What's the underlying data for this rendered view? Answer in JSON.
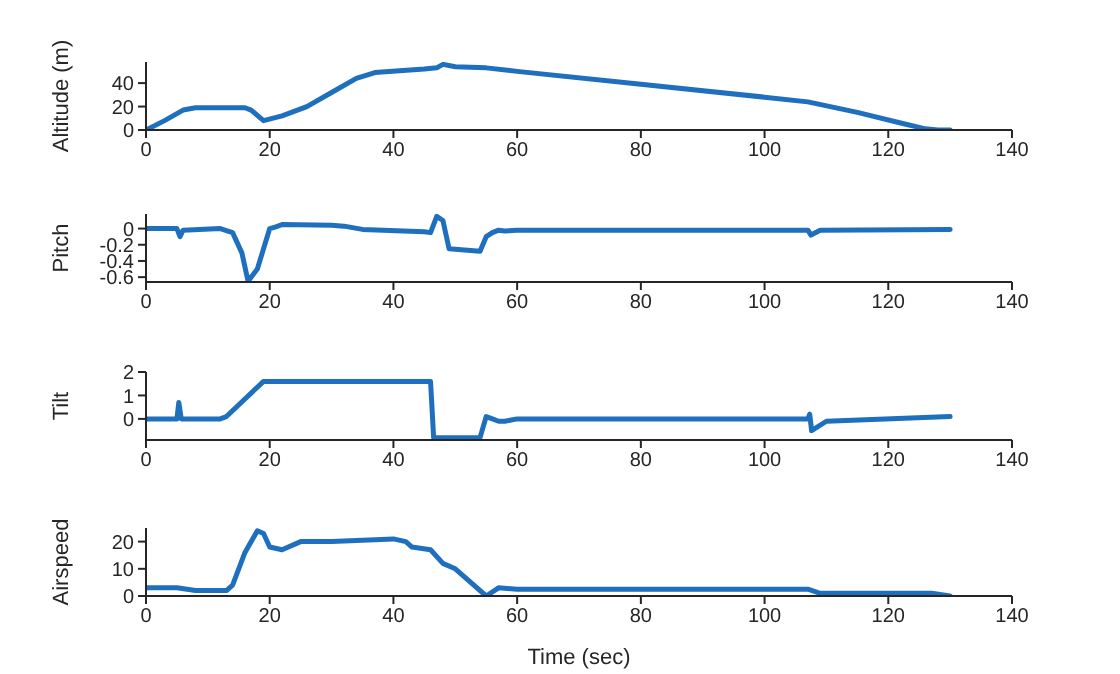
{
  "chart_data": [
    {
      "type": "line",
      "ylabel": "Altitude (m)",
      "x": [
        0,
        3,
        6,
        8,
        16,
        17,
        19,
        22,
        26,
        30,
        34,
        37,
        45,
        47,
        48,
        50,
        55,
        60,
        80,
        100,
        107,
        115,
        122,
        126,
        128,
        130
      ],
      "series": [
        {
          "color": "#1f6fbf",
          "values": [
            0,
            8,
            17,
            19,
            19,
            17,
            8,
            12,
            20,
            32,
            44,
            49,
            52,
            53,
            56,
            54,
            53,
            50,
            39,
            28,
            24,
            15,
            6,
            1,
            0,
            0
          ]
        }
      ],
      "xlim": [
        0,
        140
      ],
      "xticks": [
        0,
        20,
        40,
        60,
        80,
        100,
        120,
        140
      ],
      "ylim": [
        0,
        58
      ],
      "yticks": [
        0,
        20,
        40
      ],
      "grid": false
    },
    {
      "type": "line",
      "ylabel": "Pitch",
      "x": [
        0,
        5,
        5.5,
        6,
        12,
        14,
        15.5,
        16.5,
        18,
        19,
        20,
        21,
        22,
        30,
        32,
        35,
        45,
        46,
        47,
        48,
        49,
        54,
        55,
        56,
        57,
        58,
        60,
        107,
        107.5,
        109,
        130
      ],
      "series": [
        {
          "color": "#1f6fbf",
          "values": [
            0,
            0,
            -0.1,
            -0.02,
            0,
            -0.05,
            -0.3,
            -0.65,
            -0.5,
            -0.25,
            0,
            0.02,
            0.05,
            0.04,
            0.03,
            -0.01,
            -0.04,
            -0.05,
            0.15,
            0.1,
            -0.25,
            -0.28,
            -0.1,
            -0.05,
            -0.02,
            -0.03,
            -0.02,
            -0.02,
            -0.08,
            -0.02,
            -0.01
          ]
        }
      ],
      "xlim": [
        0,
        140
      ],
      "xticks": [
        0,
        20,
        40,
        60,
        80,
        100,
        120,
        140
      ],
      "ylim": [
        -0.66,
        0.18
      ],
      "yticks": [
        -0.6,
        -0.4,
        -0.2,
        0
      ],
      "grid": false
    },
    {
      "type": "line",
      "ylabel": "Tilt",
      "x": [
        0,
        5,
        5.3,
        5.7,
        12,
        13,
        19,
        46,
        46.5,
        54,
        55,
        56,
        57,
        58,
        60,
        107,
        107.3,
        107.6,
        110,
        130
      ],
      "series": [
        {
          "color": "#1f6fbf",
          "values": [
            0,
            0,
            0.7,
            0,
            0,
            0.1,
            1.6,
            1.6,
            -0.8,
            -0.8,
            0.1,
            0,
            -0.1,
            -0.1,
            0,
            0,
            0.2,
            -0.5,
            -0.1,
            0.1
          ]
        }
      ],
      "xlim": [
        0,
        140
      ],
      "xticks": [
        0,
        20,
        40,
        60,
        80,
        100,
        120,
        140
      ],
      "ylim": [
        -0.9,
        2
      ],
      "yticks": [
        0,
        1,
        2
      ],
      "grid": false
    },
    {
      "type": "line",
      "ylabel": "Airspeed",
      "xlabel": "Time (sec)",
      "x": [
        0,
        5,
        8,
        13,
        14,
        16,
        18,
        19,
        20,
        22,
        25,
        30,
        40,
        42,
        43,
        46,
        48,
        50,
        55,
        57,
        60,
        107,
        109,
        127,
        130
      ],
      "series": [
        {
          "color": "#1f6fbf",
          "values": [
            3,
            3,
            2,
            2,
            4,
            16,
            24,
            23,
            18,
            17,
            20,
            20,
            21,
            20,
            18,
            17,
            12,
            10,
            0,
            3,
            2.5,
            2.5,
            1,
            1,
            0
          ]
        }
      ],
      "xlim": [
        0,
        140
      ],
      "xticks": [
        0,
        20,
        40,
        60,
        80,
        100,
        120,
        140
      ],
      "ylim": [
        0,
        25
      ],
      "yticks": [
        0,
        10,
        20
      ],
      "grid": false
    }
  ]
}
